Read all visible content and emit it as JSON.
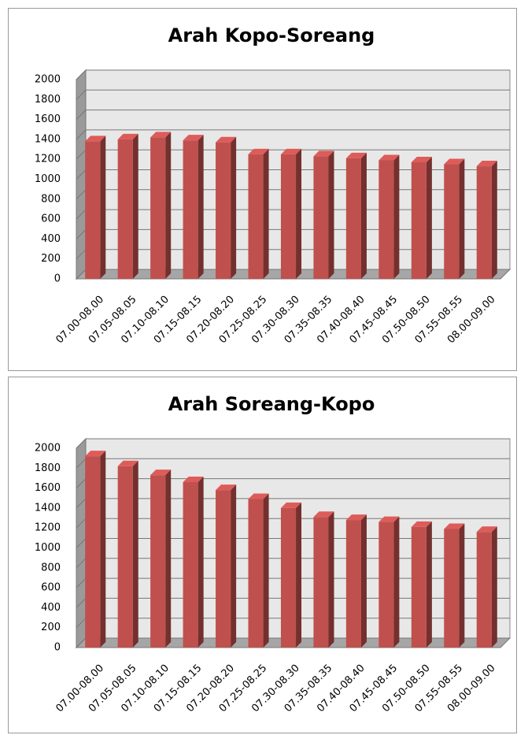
{
  "chart_data": [
    {
      "type": "bar",
      "title": "Arah Kopo-Soreang",
      "categories": [
        "07.00-08.00",
        "07.05-08.05",
        "07.10-08.10",
        "07.15-08.15",
        "07.20-08.20",
        "07.25-08.25",
        "07.30-08.30",
        "07.35-08.35",
        "07.40-08.40",
        "07.45-08.45",
        "07.50-08.50",
        "07.55-08.55",
        "08.00-09.00"
      ],
      "values": [
        1380,
        1400,
        1420,
        1390,
        1370,
        1250,
        1250,
        1230,
        1210,
        1190,
        1170,
        1150,
        1130
      ],
      "color": "#c0504d",
      "ylim": [
        0,
        2000
      ],
      "yticks": [
        0,
        200,
        400,
        600,
        800,
        1000,
        1200,
        1400,
        1600,
        1800,
        2000
      ],
      "grid": true
    },
    {
      "type": "bar",
      "title": "Arah Soreang-Kopo",
      "categories": [
        "07.00-08.00",
        "07.05-08.05",
        "07.10-08.10",
        "07.15-08.15",
        "07.20-08.20",
        "07.25-08.25",
        "07.30-08.30",
        "07.35-08.35",
        "07.40-08.40",
        "07.45-08.45",
        "07.50-08.50",
        "07.55-08.55",
        "08.00-09.00"
      ],
      "values": [
        1920,
        1820,
        1730,
        1660,
        1580,
        1490,
        1400,
        1310,
        1280,
        1260,
        1210,
        1190,
        1160
      ],
      "color": "#c0504d",
      "ylim": [
        0,
        2000
      ],
      "yticks": [
        0,
        200,
        400,
        600,
        800,
        1000,
        1200,
        1400,
        1600,
        1800,
        2000
      ],
      "grid": true
    }
  ]
}
